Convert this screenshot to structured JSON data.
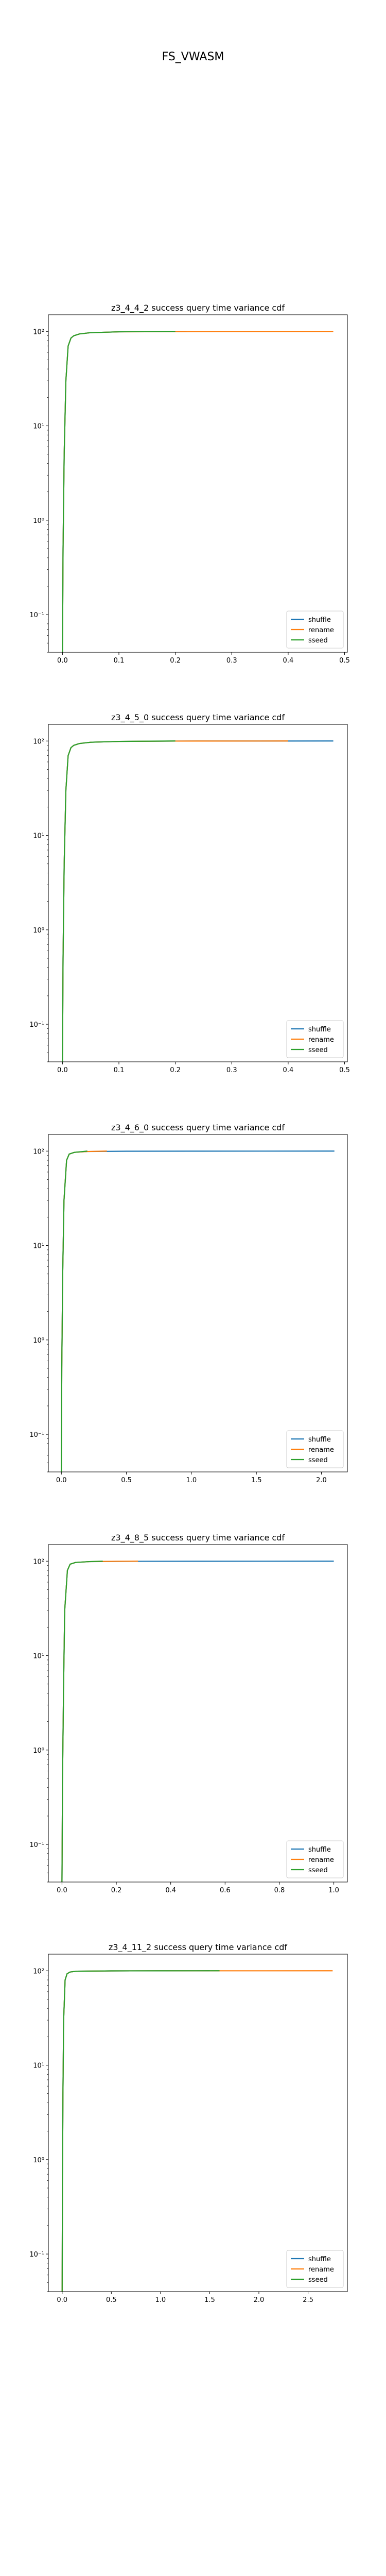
{
  "figure_title": "FS_VWASM",
  "colors": {
    "shuffle": "#1f77b4",
    "rename": "#ff7f0e",
    "sseed": "#2ca02c"
  },
  "chart_data": [
    {
      "type": "line",
      "title": "z3_4_4_2 success query time variance cdf",
      "xlim": [
        -0.025,
        0.505
      ],
      "xticks": [
        0.0,
        0.1,
        0.2,
        0.3,
        0.4,
        0.5
      ],
      "xtick_labels": [
        "0.0",
        "0.1",
        "0.2",
        "0.3",
        "0.4",
        "0.5"
      ],
      "yscale": "log",
      "ylim": [
        0.04,
        150
      ],
      "yticks": [
        0.1,
        1,
        10,
        100
      ],
      "ytick_labels": [
        "10⁻¹",
        "10⁰",
        "10¹",
        "10²"
      ],
      "legend": "lower-right",
      "series": [
        {
          "name": "shuffle",
          "x": [
            0.0,
            0.001,
            0.003,
            0.006,
            0.01,
            0.015,
            0.02,
            0.03,
            0.05,
            0.1,
            0.2,
            0.22
          ],
          "y": [
            0.04,
            0.5,
            5,
            30,
            70,
            85,
            90,
            94,
            97,
            99,
            100,
            100
          ]
        },
        {
          "name": "rename",
          "x": [
            0.0,
            0.001,
            0.003,
            0.006,
            0.01,
            0.015,
            0.02,
            0.03,
            0.05,
            0.1,
            0.2,
            0.3,
            0.48
          ],
          "y": [
            0.04,
            0.5,
            5,
            30,
            70,
            85,
            90,
            94,
            97,
            99,
            99.5,
            99.8,
            100
          ]
        },
        {
          "name": "sseed",
          "x": [
            0.0,
            0.001,
            0.003,
            0.006,
            0.01,
            0.015,
            0.02,
            0.03,
            0.05,
            0.1,
            0.15,
            0.2
          ],
          "y": [
            0.04,
            0.5,
            5,
            30,
            70,
            85,
            90,
            94,
            97,
            99,
            99.8,
            100
          ]
        }
      ]
    },
    {
      "type": "line",
      "title": "z3_4_5_0 success query time variance cdf",
      "xlim": [
        -0.025,
        0.505
      ],
      "xticks": [
        0.0,
        0.1,
        0.2,
        0.3,
        0.4,
        0.5
      ],
      "xtick_labels": [
        "0.0",
        "0.1",
        "0.2",
        "0.3",
        "0.4",
        "0.5"
      ],
      "yscale": "log",
      "ylim": [
        0.04,
        150
      ],
      "yticks": [
        0.1,
        1,
        10,
        100
      ],
      "ytick_labels": [
        "10⁻¹",
        "10⁰",
        "10¹",
        "10²"
      ],
      "legend": "lower-right",
      "series": [
        {
          "name": "shuffle",
          "x": [
            0.0,
            0.001,
            0.003,
            0.006,
            0.01,
            0.015,
            0.02,
            0.03,
            0.05,
            0.1,
            0.2,
            0.48
          ],
          "y": [
            0.04,
            0.5,
            5,
            30,
            70,
            85,
            90,
            94,
            97,
            99,
            99.8,
            100
          ]
        },
        {
          "name": "rename",
          "x": [
            0.0,
            0.001,
            0.003,
            0.006,
            0.01,
            0.015,
            0.02,
            0.03,
            0.05,
            0.1,
            0.2,
            0.4
          ],
          "y": [
            0.04,
            0.5,
            5,
            30,
            70,
            85,
            90,
            94,
            97,
            99,
            99.8,
            100
          ]
        },
        {
          "name": "sseed",
          "x": [
            0.0,
            0.001,
            0.003,
            0.006,
            0.01,
            0.015,
            0.02,
            0.03,
            0.05,
            0.1,
            0.2
          ],
          "y": [
            0.04,
            0.5,
            5,
            30,
            70,
            85,
            90,
            94,
            97,
            99,
            100
          ]
        }
      ]
    },
    {
      "type": "line",
      "title": "z3_4_6_0 success query time variance cdf",
      "xlim": [
        -0.1,
        2.2
      ],
      "xticks": [
        0.0,
        0.5,
        1.0,
        1.5,
        2.0
      ],
      "xtick_labels": [
        "0.0",
        "0.5",
        "1.0",
        "1.5",
        "2.0"
      ],
      "yscale": "log",
      "ylim": [
        0.04,
        150
      ],
      "yticks": [
        0.1,
        1,
        10,
        100
      ],
      "ytick_labels": [
        "10⁻¹",
        "10⁰",
        "10¹",
        "10²"
      ],
      "legend": "lower-right",
      "series": [
        {
          "name": "shuffle",
          "x": [
            0.0,
            0.003,
            0.01,
            0.02,
            0.04,
            0.06,
            0.1,
            0.2,
            0.5,
            1.0,
            2.1
          ],
          "y": [
            0.04,
            0.5,
            5,
            30,
            80,
            93,
            97,
            99,
            99.7,
            99.9,
            100
          ]
        },
        {
          "name": "rename",
          "x": [
            0.0,
            0.003,
            0.01,
            0.02,
            0.04,
            0.06,
            0.1,
            0.2,
            0.35
          ],
          "y": [
            0.04,
            0.5,
            5,
            30,
            80,
            93,
            97,
            99,
            100
          ]
        },
        {
          "name": "sseed",
          "x": [
            0.0,
            0.003,
            0.01,
            0.02,
            0.04,
            0.06,
            0.1,
            0.2
          ],
          "y": [
            0.04,
            0.5,
            5,
            30,
            80,
            93,
            97,
            100
          ]
        }
      ]
    },
    {
      "type": "line",
      "title": "z3_4_8_5 success query time variance cdf",
      "xlim": [
        -0.05,
        1.05
      ],
      "xticks": [
        0.0,
        0.2,
        0.4,
        0.6,
        0.8,
        1.0
      ],
      "xtick_labels": [
        "0.0",
        "0.2",
        "0.4",
        "0.6",
        "0.8",
        "1.0"
      ],
      "yscale": "log",
      "ylim": [
        0.04,
        150
      ],
      "yticks": [
        0.1,
        1,
        10,
        100
      ],
      "ytick_labels": [
        "10⁻¹",
        "10⁰",
        "10¹",
        "10²"
      ],
      "legend": "lower-right",
      "series": [
        {
          "name": "shuffle",
          "x": [
            0.0,
            0.002,
            0.006,
            0.01,
            0.02,
            0.03,
            0.05,
            0.1,
            0.3,
            1.0
          ],
          "y": [
            0.04,
            0.5,
            5,
            30,
            80,
            93,
            97,
            99,
            99.8,
            100
          ]
        },
        {
          "name": "rename",
          "x": [
            0.0,
            0.002,
            0.006,
            0.01,
            0.02,
            0.03,
            0.05,
            0.1,
            0.2,
            0.28
          ],
          "y": [
            0.04,
            0.5,
            5,
            30,
            80,
            93,
            97,
            99,
            99.8,
            100
          ]
        },
        {
          "name": "sseed",
          "x": [
            0.0,
            0.002,
            0.006,
            0.01,
            0.02,
            0.03,
            0.05,
            0.1,
            0.15
          ],
          "y": [
            0.04,
            0.5,
            5,
            30,
            80,
            93,
            97,
            99,
            100
          ]
        }
      ]
    },
    {
      "type": "line",
      "title": "z3_4_11_2 success query time variance cdf",
      "xlim": [
        -0.14,
        2.9
      ],
      "xticks": [
        0.0,
        0.5,
        1.0,
        1.5,
        2.0,
        2.5
      ],
      "xtick_labels": [
        "0.0",
        "0.5",
        "1.0",
        "1.5",
        "2.0",
        "2.5"
      ],
      "yscale": "log",
      "ylim": [
        0.04,
        150
      ],
      "yticks": [
        0.1,
        1,
        10,
        100
      ],
      "ytick_labels": [
        "10⁻¹",
        "10⁰",
        "10¹",
        "10²"
      ],
      "legend": "lower-right",
      "series": [
        {
          "name": "shuffle",
          "x": [
            0.0,
            0.003,
            0.008,
            0.015,
            0.03,
            0.05,
            0.08,
            0.15,
            0.5,
            1.0,
            1.5
          ],
          "y": [
            0.04,
            0.5,
            5,
            30,
            80,
            93,
            97,
            99,
            99.7,
            99.9,
            100
          ]
        },
        {
          "name": "rename",
          "x": [
            0.0,
            0.003,
            0.008,
            0.015,
            0.03,
            0.05,
            0.08,
            0.15,
            0.5,
            1.0,
            2.0,
            2.75
          ],
          "y": [
            0.04,
            0.5,
            5,
            30,
            80,
            93,
            97,
            99,
            99.7,
            99.9,
            99.95,
            100
          ]
        },
        {
          "name": "sseed",
          "x": [
            0.0,
            0.003,
            0.008,
            0.015,
            0.03,
            0.05,
            0.08,
            0.15,
            0.5,
            1.0,
            1.6
          ],
          "y": [
            0.04,
            0.5,
            5,
            30,
            80,
            93,
            97,
            99,
            99.7,
            99.9,
            100
          ]
        }
      ]
    }
  ]
}
